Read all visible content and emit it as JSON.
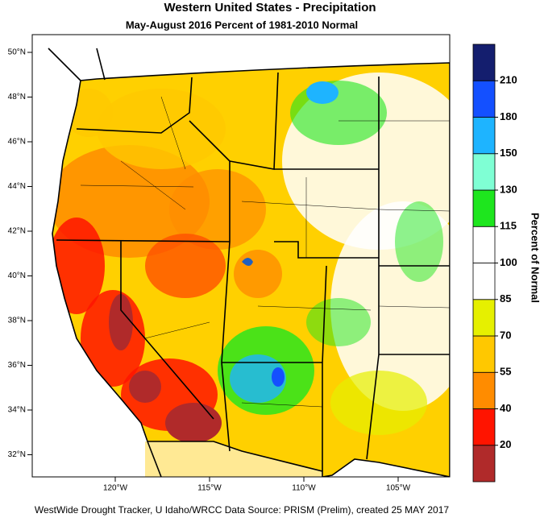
{
  "title": "Western United States - Precipitation",
  "subtitle": "May-August 2016  Percent of 1981-2010 Normal",
  "latitude_labels": [
    "50°N",
    "48°N",
    "46°N",
    "44°N",
    "42°N",
    "40°N",
    "38°N",
    "36°N",
    "34°N",
    "32°N"
  ],
  "longitude_labels": [
    "120°W",
    "115°W",
    "110°W",
    "105°W"
  ],
  "legend": {
    "title": "Percent of Normal",
    "ticks": [
      20,
      40,
      55,
      70,
      85,
      100,
      115,
      130,
      150,
      180,
      210
    ],
    "colors": [
      "#b02a2a",
      "#ff1400",
      "#ff8c00",
      "#ffc800",
      "#e6f000",
      "#ffffff",
      "#ffffff",
      "#1ee61e",
      "#7fffd4",
      "#1eb4ff",
      "#1450ff",
      "#141e6e"
    ]
  },
  "footer": "WestWide Drought Tracker, U Idaho/WRCC Data Source: PRISM (Prelim), created 25 MAY 2017"
}
